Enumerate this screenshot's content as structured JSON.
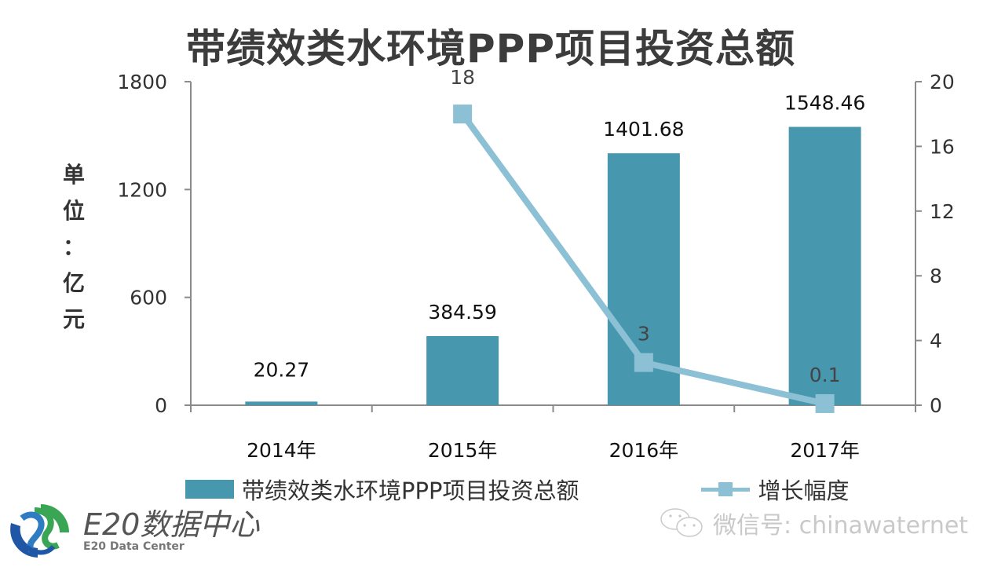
{
  "title": "带绩效类水环境PPP项目投资总额",
  "y_axis_label": "单位：亿元",
  "y_axis_label_chars": [
    "单",
    "位",
    "：",
    "亿",
    "元"
  ],
  "legend": {
    "bar_label": "带绩效类水环境PPP项目投资总额",
    "line_label": "增长幅度"
  },
  "logo": {
    "cn": "E20数据中心",
    "en": "E20 Data Center"
  },
  "watermark": "微信号: chinawaternet",
  "colors": {
    "bar": "#4797ae",
    "line": "#8cc0d5",
    "axis": "#8a8a8a",
    "title": "#3c3c3c"
  },
  "chart_data": {
    "type": "bar+line",
    "title": "带绩效类水环境PPP项目投资总额",
    "categories": [
      "2014年",
      "2015年",
      "2016年",
      "2017年"
    ],
    "series": [
      {
        "name": "带绩效类水环境PPP项目投资总额",
        "type": "bar",
        "axis": "left",
        "values": [
          20.27,
          384.59,
          1401.68,
          1548.46
        ],
        "labels": [
          "20.27",
          "384.59",
          "1401.68",
          "1548.46"
        ]
      },
      {
        "name": "增长幅度",
        "type": "line",
        "axis": "right",
        "values": [
          null,
          18,
          2.64,
          0.1
        ],
        "labels": [
          null,
          "18",
          "3",
          "0.1"
        ]
      }
    ],
    "ylabel": "单位：亿元",
    "ylim": [
      0,
      1800
    ],
    "yticks": [
      0,
      600,
      1200,
      1800
    ],
    "y2lim": [
      0,
      20
    ],
    "y2ticks": [
      0,
      4,
      8,
      12,
      16,
      20
    ],
    "grid": false,
    "legend_position": "bottom"
  }
}
